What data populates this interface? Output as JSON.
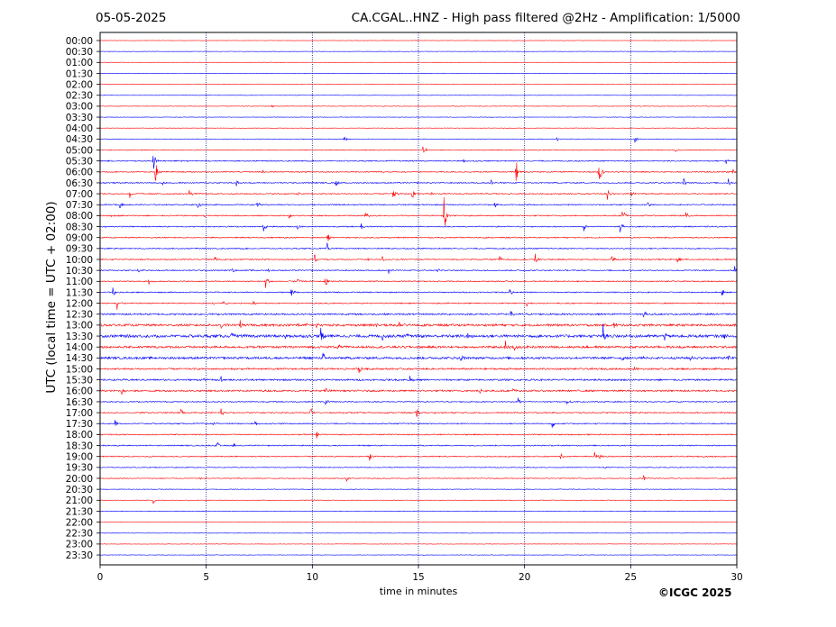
{
  "header": {
    "date": "05-05-2025",
    "title": "CA.CGAL..HNZ - High pass filtered @2Hz - Amplification: 1/5000"
  },
  "footer": {
    "copyright": "©ICGC 2025"
  },
  "chart_data": {
    "type": "line",
    "xlabel": "time in minutes",
    "ylabel": "UTC (local time = UTC + 02:00)",
    "xlim": [
      0,
      30
    ],
    "x_ticks": [
      0,
      5,
      10,
      15,
      20,
      25,
      30
    ],
    "x_tick_labels": [
      "0",
      "5",
      "10",
      "15",
      "20",
      "25",
      "30"
    ],
    "trace_labels": [
      "00:00",
      "00:30",
      "01:00",
      "01:30",
      "02:00",
      "02:30",
      "03:00",
      "03:30",
      "04:00",
      "04:30",
      "05:00",
      "05:30",
      "06:00",
      "06:30",
      "07:00",
      "07:30",
      "08:00",
      "08:30",
      "09:00",
      "09:30",
      "10:00",
      "10:30",
      "11:00",
      "11:30",
      "12:00",
      "12:30",
      "13:00",
      "13:30",
      "14:00",
      "14:30",
      "15:00",
      "15:30",
      "16:00",
      "16:30",
      "17:00",
      "17:30",
      "18:00",
      "18:30",
      "19:00",
      "19:30",
      "20:00",
      "20:30",
      "21:00",
      "21:30",
      "22:00",
      "22:30",
      "23:00",
      "23:30"
    ],
    "colors": {
      "even": "#ff0000",
      "odd": "#0000ff",
      "grid": "#000080"
    },
    "vertical_grid": [
      5,
      10,
      15,
      20,
      25
    ],
    "noise_levels": [
      0.4,
      0.4,
      0.4,
      0.4,
      0.4,
      0.4,
      0.5,
      0.4,
      0.4,
      0.5,
      0.7,
      1.0,
      1.0,
      1.0,
      1.0,
      1.0,
      1.0,
      1.0,
      1.0,
      1.0,
      1.0,
      1.0,
      1.0,
      1.0,
      1.0,
      1.5,
      2.0,
      2.5,
      2.0,
      2.0,
      1.5,
      1.5,
      1.5,
      1.0,
      1.0,
      1.0,
      1.0,
      1.0,
      1.0,
      0.7,
      0.7,
      0.6,
      0.5,
      0.5,
      0.4,
      0.4,
      0.4,
      0.4
    ],
    "events": [
      [
        6,
        8.1,
        2
      ],
      [
        9,
        11.5,
        4
      ],
      [
        9,
        21.5,
        3
      ],
      [
        9,
        25.2,
        5
      ],
      [
        10,
        15.2,
        9
      ],
      [
        10,
        27.1,
        5
      ],
      [
        11,
        2.5,
        12
      ],
      [
        11,
        17.1,
        4
      ],
      [
        11,
        29.5,
        4
      ],
      [
        12,
        2.6,
        14
      ],
      [
        12,
        7.6,
        4
      ],
      [
        12,
        19.6,
        14
      ],
      [
        12,
        23.5,
        16
      ],
      [
        12,
        29.8,
        4
      ],
      [
        13,
        2.9,
        4
      ],
      [
        13,
        6.4,
        6
      ],
      [
        13,
        11.1,
        4
      ],
      [
        13,
        18.4,
        5
      ],
      [
        13,
        27.5,
        5
      ],
      [
        13,
        29.6,
        5
      ],
      [
        14,
        1.4,
        5
      ],
      [
        14,
        4.2,
        5
      ],
      [
        14,
        9.3,
        3
      ],
      [
        14,
        13.8,
        8
      ],
      [
        14,
        14.7,
        7
      ],
      [
        14,
        15.6,
        3
      ],
      [
        14,
        23.9,
        7
      ],
      [
        14,
        25.0,
        5
      ],
      [
        15,
        0.9,
        5
      ],
      [
        15,
        4.6,
        5
      ],
      [
        15,
        7.4,
        5
      ],
      [
        15,
        18.6,
        4
      ],
      [
        15,
        25.8,
        4
      ],
      [
        16,
        0.5,
        2
      ],
      [
        16,
        4.9,
        3
      ],
      [
        16,
        8.9,
        3
      ],
      [
        16,
        12.5,
        6
      ],
      [
        16,
        16.2,
        22
      ],
      [
        16,
        24.6,
        12
      ],
      [
        16,
        27.6,
        4
      ],
      [
        17,
        7.7,
        5
      ],
      [
        17,
        9.3,
        4
      ],
      [
        17,
        12.3,
        4
      ],
      [
        17,
        22.8,
        5
      ],
      [
        17,
        24.5,
        7
      ],
      [
        18,
        10.7,
        8
      ],
      [
        19,
        10.7,
        8
      ],
      [
        20,
        5.4,
        5
      ],
      [
        20,
        10.1,
        6
      ],
      [
        20,
        12.6,
        4
      ],
      [
        20,
        13.3,
        4
      ],
      [
        20,
        18.8,
        5
      ],
      [
        20,
        20.5,
        8
      ],
      [
        20,
        24.1,
        5
      ],
      [
        20,
        27.2,
        4
      ],
      [
        21,
        1.8,
        5
      ],
      [
        21,
        6.2,
        3
      ],
      [
        21,
        7.9,
        3
      ],
      [
        21,
        13.6,
        5
      ],
      [
        21,
        15.9,
        4
      ],
      [
        21,
        29.9,
        6
      ],
      [
        22,
        2.3,
        5
      ],
      [
        22,
        7.8,
        9
      ],
      [
        22,
        9.3,
        4
      ],
      [
        22,
        10.6,
        9
      ],
      [
        22,
        19.4,
        2
      ],
      [
        23,
        0.6,
        5
      ],
      [
        23,
        9.0,
        5
      ],
      [
        23,
        19.3,
        5
      ],
      [
        23,
        29.3,
        5
      ],
      [
        24,
        0.8,
        10
      ],
      [
        24,
        5.3,
        3
      ],
      [
        24,
        5.8,
        6
      ],
      [
        24,
        7.2,
        4
      ],
      [
        24,
        20.1,
        4
      ],
      [
        25,
        19.3,
        6
      ],
      [
        25,
        25.6,
        5
      ],
      [
        26,
        5.7,
        5
      ],
      [
        26,
        6.6,
        5
      ],
      [
        26,
        9.3,
        4
      ],
      [
        26,
        9.7,
        4
      ],
      [
        26,
        10.2,
        5
      ],
      [
        26,
        13.0,
        3
      ],
      [
        26,
        14.1,
        4
      ],
      [
        26,
        24.2,
        4
      ],
      [
        27,
        2.3,
        3
      ],
      [
        27,
        6.2,
        3
      ],
      [
        27,
        8.7,
        5
      ],
      [
        27,
        10.4,
        12
      ],
      [
        27,
        13.3,
        5
      ],
      [
        27,
        14.4,
        5
      ],
      [
        27,
        17.3,
        5
      ],
      [
        27,
        23.7,
        14
      ],
      [
        27,
        26.6,
        5
      ],
      [
        27,
        29.4,
        4
      ],
      [
        28,
        11.2,
        6
      ],
      [
        28,
        19.1,
        8
      ],
      [
        28,
        19.5,
        4
      ],
      [
        29,
        6.7,
        3
      ],
      [
        29,
        10.5,
        6
      ],
      [
        29,
        17.0,
        7
      ],
      [
        29,
        24.6,
        4
      ],
      [
        29,
        25.5,
        3
      ],
      [
        29,
        27.8,
        4
      ],
      [
        29,
        29.6,
        6
      ],
      [
        30,
        12.2,
        5
      ],
      [
        30,
        25.1,
        5
      ],
      [
        31,
        4.8,
        3
      ],
      [
        31,
        5.7,
        5
      ],
      [
        31,
        14.6,
        5
      ],
      [
        32,
        1.0,
        5
      ],
      [
        32,
        10.6,
        6
      ],
      [
        32,
        17.9,
        5
      ],
      [
        32,
        19.4,
        5
      ],
      [
        33,
        10.6,
        6
      ],
      [
        33,
        19.7,
        5
      ],
      [
        33,
        22.0,
        3
      ],
      [
        34,
        3.8,
        4
      ],
      [
        34,
        5.7,
        6
      ],
      [
        34,
        9.9,
        8
      ],
      [
        34,
        14.9,
        7
      ],
      [
        35,
        0.7,
        5
      ],
      [
        35,
        5.3,
        4
      ],
      [
        35,
        7.3,
        5
      ],
      [
        35,
        21.3,
        5
      ],
      [
        36,
        10.2,
        5
      ],
      [
        37,
        5.5,
        5
      ],
      [
        37,
        6.3,
        4
      ],
      [
        38,
        12.7,
        5
      ],
      [
        38,
        21.7,
        4
      ],
      [
        38,
        23.3,
        5
      ],
      [
        38,
        23.5,
        4
      ],
      [
        39,
        23.7,
        4
      ],
      [
        40,
        4.7,
        2
      ],
      [
        40,
        6.5,
        2
      ],
      [
        40,
        11.6,
        5
      ],
      [
        40,
        25.6,
        5
      ],
      [
        42,
        2.5,
        4
      ],
      [
        42,
        10.0,
        2
      ]
    ]
  }
}
